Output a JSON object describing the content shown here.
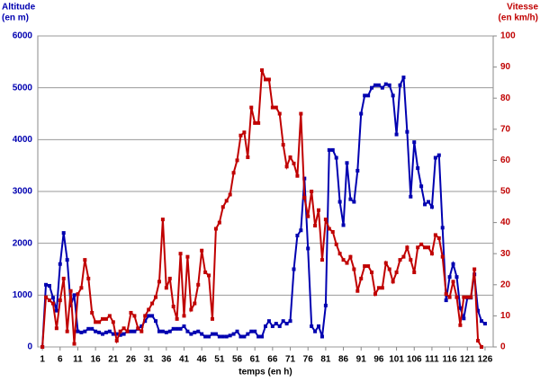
{
  "chart_data": {
    "type": "line",
    "y_label": "Altitude",
    "y_label_unit": "(en m)",
    "y2_label": "Vitesse",
    "y2_label_unit": "(en km/h)",
    "x_label": "temps (en h)",
    "x": [
      1,
      2,
      3,
      4,
      5,
      6,
      7,
      8,
      9,
      10,
      11,
      12,
      13,
      14,
      15,
      16,
      17,
      18,
      19,
      20,
      21,
      22,
      23,
      24,
      25,
      26,
      27,
      28,
      29,
      30,
      31,
      32,
      33,
      34,
      35,
      36,
      37,
      38,
      39,
      40,
      41,
      42,
      43,
      44,
      45,
      46,
      47,
      48,
      49,
      50,
      51,
      52,
      53,
      54,
      55,
      56,
      57,
      58,
      59,
      60,
      61,
      62,
      63,
      64,
      65,
      66,
      67,
      68,
      69,
      70,
      71,
      72,
      73,
      74,
      75,
      76,
      77,
      78,
      79,
      80,
      81,
      82,
      83,
      84,
      85,
      86,
      87,
      88,
      89,
      90,
      91,
      92,
      93,
      94,
      95,
      96,
      97,
      98,
      99,
      100,
      101,
      102,
      103,
      104,
      105,
      106,
      107,
      108,
      109,
      110,
      111,
      112,
      113,
      114,
      115,
      116,
      117,
      118,
      119,
      120,
      121,
      122,
      123,
      124,
      125,
      126
    ],
    "xlim": [
      -0.3,
      128.3
    ],
    "xticks": [
      1,
      6,
      11,
      16,
      21,
      26,
      31,
      36,
      41,
      46,
      51,
      56,
      61,
      66,
      71,
      76,
      81,
      86,
      91,
      96,
      101,
      106,
      111,
      116,
      121,
      126
    ],
    "ylim": [
      0,
      6000
    ],
    "yticks": [
      0,
      1000,
      2000,
      3000,
      4000,
      5000,
      6000
    ],
    "y2lim": [
      0,
      100
    ],
    "y2ticks": [
      0,
      10,
      20,
      30,
      40,
      50,
      60,
      70,
      80,
      90,
      100
    ],
    "grid": true,
    "series": [
      {
        "name": "Altitude",
        "color": "#0000b0",
        "values": [
          0,
          1200,
          1180,
          950,
          700,
          1600,
          2200,
          1680,
          800,
          1000,
          300,
          280,
          300,
          350,
          350,
          300,
          280,
          250,
          280,
          300,
          250,
          250,
          230,
          250,
          300,
          300,
          300,
          350,
          400,
          500,
          600,
          600,
          500,
          300,
          300,
          280,
          300,
          350,
          350,
          350,
          400,
          300,
          250,
          280,
          300,
          250,
          200,
          200,
          250,
          250,
          200,
          200,
          200,
          220,
          250,
          300,
          200,
          200,
          250,
          300,
          300,
          200,
          200,
          400,
          500,
          400,
          450,
          400,
          500,
          450,
          500,
          1500,
          2150,
          2250,
          3250,
          1900,
          400,
          300,
          400,
          200,
          800,
          3800,
          3800,
          3650,
          2800,
          2350,
          3550,
          2850,
          2800,
          3400,
          4500,
          4850,
          4850,
          5000,
          5050,
          5050,
          5000,
          5070,
          5050,
          4850,
          4100,
          5050,
          5200,
          4150,
          2900,
          3950,
          3450,
          3100,
          2750,
          2800,
          2700,
          3650,
          3700,
          2300,
          900,
          1350,
          1600,
          1350,
          750,
          550,
          950,
          950,
          1400,
          700,
          500,
          450
        ]
      },
      {
        "name": "Vitesse",
        "color": "#c00000",
        "axis": "y2",
        "values": [
          0,
          16,
          15,
          14,
          6,
          15,
          22,
          5,
          18,
          1,
          17,
          19,
          28,
          22,
          11,
          8,
          8,
          9,
          9,
          10,
          8,
          2,
          5,
          6,
          5,
          11,
          10,
          6,
          5,
          10,
          12,
          14,
          16,
          21,
          41,
          19,
          22,
          13,
          9,
          30,
          10,
          29,
          12,
          14,
          20,
          31,
          24,
          23,
          9,
          38,
          40,
          45,
          47,
          49,
          56,
          60,
          68,
          69,
          61,
          77,
          72,
          72,
          89,
          86,
          86,
          77,
          77,
          75,
          65,
          58,
          61,
          59,
          55,
          75,
          48,
          42,
          50,
          39,
          44,
          28,
          41,
          38,
          37,
          33,
          30,
          28,
          27,
          29,
          25,
          18,
          22,
          26,
          26,
          24,
          17,
          19,
          19,
          27,
          25,
          21,
          24,
          28,
          29,
          32,
          28,
          24,
          32,
          33,
          32,
          32,
          30,
          36,
          35,
          29,
          17,
          16,
          21,
          16,
          7,
          16,
          16,
          16,
          25,
          2,
          0,
          null
        ]
      }
    ]
  }
}
